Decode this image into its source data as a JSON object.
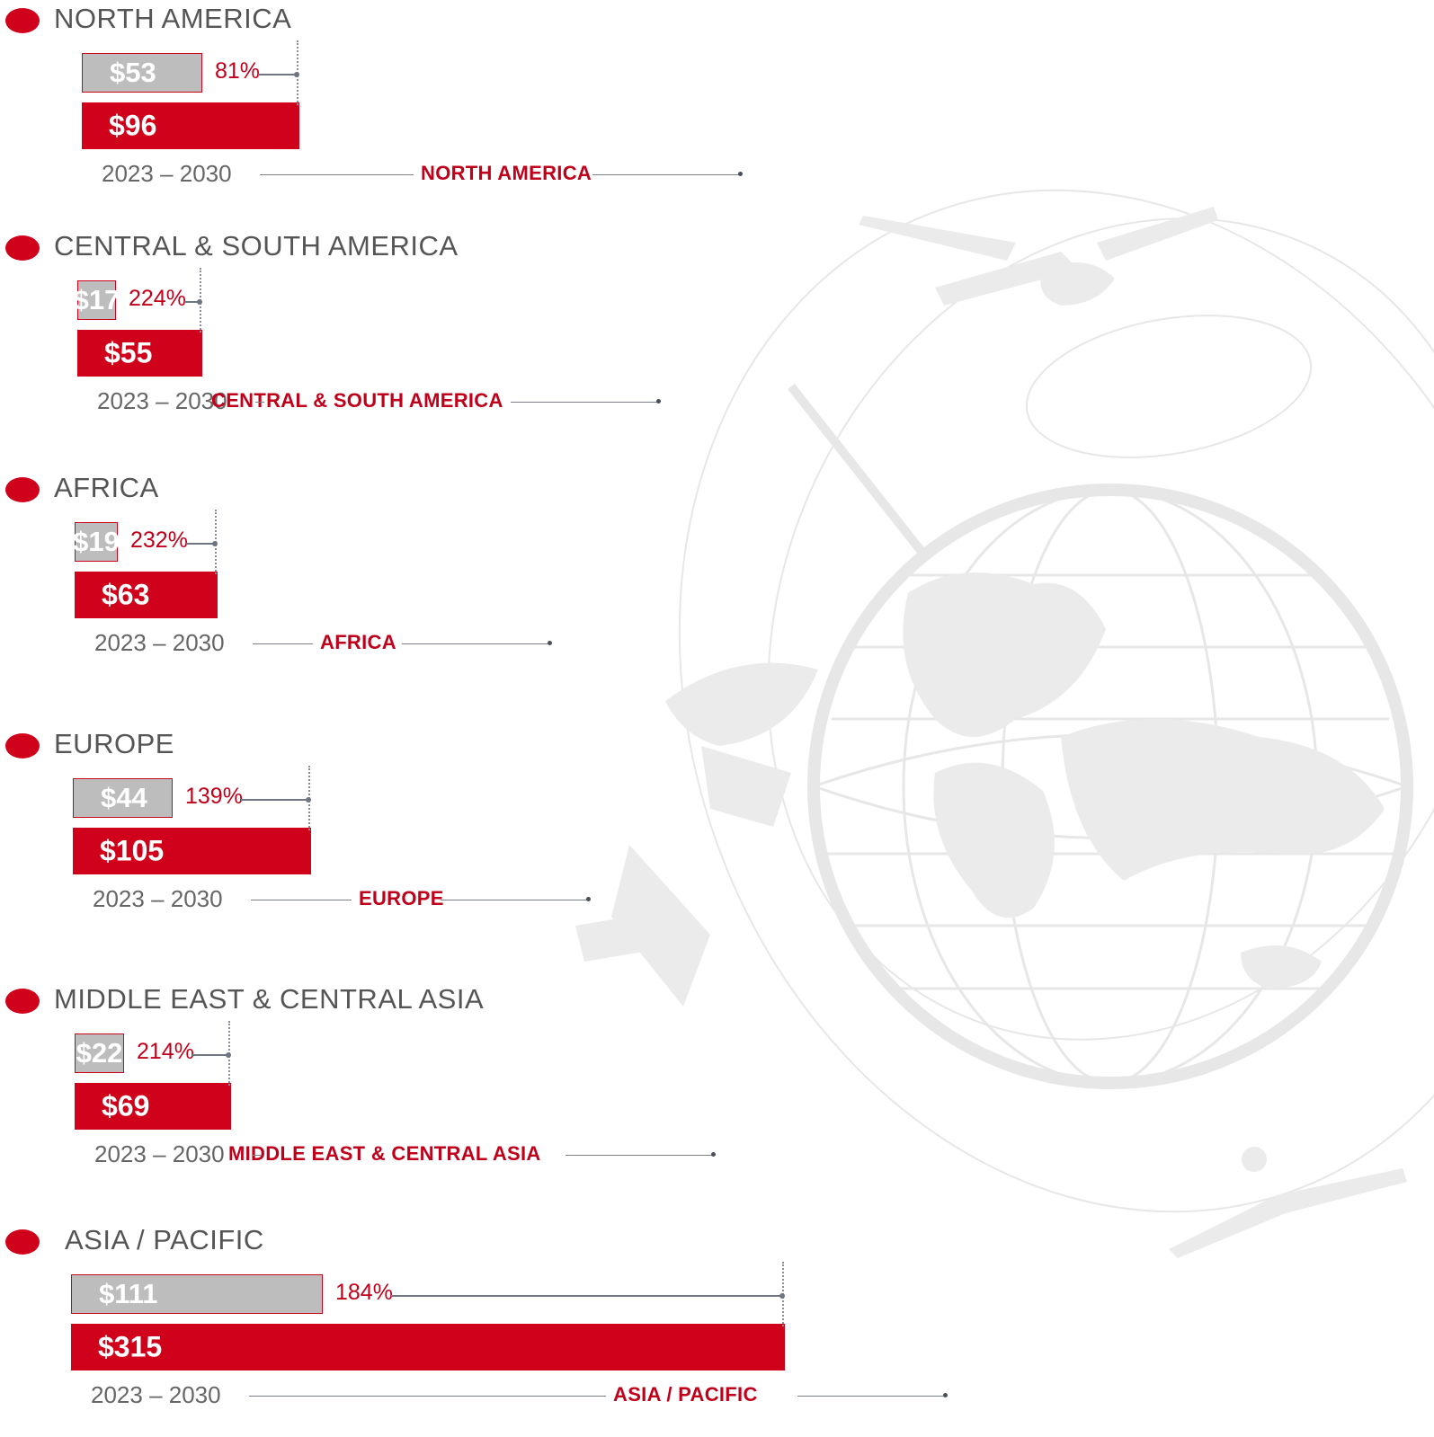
{
  "chart_data": {
    "type": "bar",
    "period": "2023 – 2030",
    "colors": {
      "base": "#bdbdbd",
      "forecast": "#d0021b",
      "accent": "#c0001a"
    },
    "series": [
      {
        "values": [
          53,
          17,
          19,
          44,
          22,
          111
        ]
      },
      {
        "values": [
          96,
          55,
          63,
          105,
          69,
          315
        ]
      }
    ],
    "regions": [
      {
        "title": "NORTH AMERICA",
        "name_label": "NORTH AMERICA",
        "value_2023": 53,
        "value_2030": 96,
        "label_2023": "$53",
        "label_2030": "$96",
        "growth": "81%",
        "years": "2023 – 2030"
      },
      {
        "title": "CENTRAL & SOUTH AMERICA",
        "name_label": "CENTRAL & SOUTH AMERICA",
        "value_2023": 17,
        "value_2030": 55,
        "label_2023": "$17",
        "label_2030": "$55",
        "growth": "224%",
        "years": "2023 – 2030"
      },
      {
        "title": "AFRICA",
        "name_label": "AFRICA",
        "value_2023": 19,
        "value_2030": 63,
        "label_2023": "$19",
        "label_2030": "$63",
        "growth": "232%",
        "years": "2023 – 2030"
      },
      {
        "title": "EUROPE",
        "name_label": "EUROPE",
        "value_2023": 44,
        "value_2030": 105,
        "label_2023": "$44",
        "label_2030": "$105",
        "growth": "139%",
        "years": "2023 – 2030"
      },
      {
        "title": "MIDDLE EAST & CENTRAL ASIA",
        "name_label": "MIDDLE EAST & CENTRAL ASIA",
        "value_2023": 22,
        "value_2030": 69,
        "label_2023": "$22",
        "label_2030": "$69",
        "growth": "214%",
        "years": "2023 – 2030"
      },
      {
        "title": "ASIA / PACIFIC",
        "name_label": "ASIA / PACIFIC",
        "value_2023": 111,
        "value_2030": 315,
        "label_2023": "$111",
        "label_2030": "$315",
        "growth": "184%",
        "years": "2023 – 2030"
      }
    ]
  }
}
